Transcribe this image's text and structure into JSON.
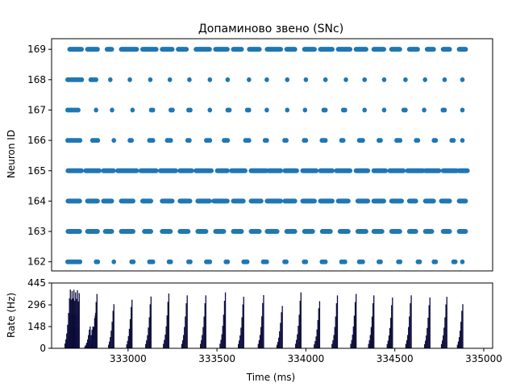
{
  "chart_data": [
    {
      "type": "scatter",
      "title": "Допаминово звено (SNc)",
      "xlabel": "",
      "ylabel": "Neuron ID",
      "xlim": [
        332570,
        335050
      ],
      "ylim": [
        161.7,
        169.35
      ],
      "yticks": [
        162,
        163,
        164,
        165,
        166,
        167,
        168,
        169
      ],
      "grid": false,
      "marker_color": "#1f77b4",
      "neurons": [
        {
          "id": 169,
          "bursts": [
            [
              332670,
              332740
            ],
            [
              332770,
              332830
            ],
            [
              332880,
              332910
            ],
            [
              332960,
              333050
            ],
            [
              333080,
              333160
            ],
            [
              333190,
              333250
            ],
            [
              333280,
              333330
            ],
            [
              333380,
              333460
            ],
            [
              333490,
              333560
            ],
            [
              333590,
              333640
            ],
            [
              333680,
              333740
            ],
            [
              333780,
              333860
            ],
            [
              333890,
              333940
            ],
            [
              333990,
              334050
            ],
            [
              334080,
              334150
            ],
            [
              334180,
              334250
            ],
            [
              334280,
              334340
            ],
            [
              334380,
              334440
            ],
            [
              334480,
              334530
            ],
            [
              334580,
              334630
            ],
            [
              334680,
              334720
            ],
            [
              334770,
              334810
            ],
            [
              334860,
              334900
            ]
          ]
        },
        {
          "id": 168,
          "spikes": [
            332660,
            332670,
            332680,
            332690,
            332700,
            332710,
            332720,
            332730,
            332740,
            332790,
            332800,
            332810,
            332820,
            332900,
            333010,
            333125,
            333235,
            333345,
            333460,
            333560,
            333680,
            333780,
            333895,
            334000,
            334110,
            334225,
            334330,
            334440,
            334560,
            334670,
            334780,
            334880
          ]
        },
        {
          "id": 167,
          "spikes": [
            332660,
            332670,
            332680,
            332690,
            332700,
            332710,
            332720,
            332820,
            332910,
            333025,
            333130,
            333140,
            333240,
            333250,
            333340,
            333350,
            333460,
            333560,
            333570,
            333670,
            333680,
            333780,
            333895,
            333995,
            334100,
            334110,
            334210,
            334220,
            334330,
            334440,
            334550,
            334560,
            334665,
            334770,
            334780,
            334880
          ]
        },
        {
          "id": 166,
          "spikes": [
            332660,
            332670,
            332680,
            332690,
            332700,
            332710,
            332720,
            332730,
            332800,
            332810,
            332820,
            332830,
            332920,
            333010,
            333020,
            333120,
            333130,
            333140,
            333220,
            333230,
            333240,
            333335,
            333345,
            333440,
            333450,
            333460,
            333540,
            333550,
            333560,
            333660,
            333670,
            333680,
            333770,
            333780,
            333880,
            333890,
            333990,
            334000,
            334090,
            334100,
            334110,
            334200,
            334210,
            334300,
            334310,
            334320,
            334410,
            334420,
            334510,
            334520,
            334530,
            334620,
            334630,
            334720,
            334730,
            334820,
            334830,
            334880
          ]
        },
        {
          "id": 165,
          "bursts": [
            [
              332660,
              332740
            ],
            [
              332760,
              332840
            ],
            [
              332860,
              332920
            ],
            [
              332940,
              333050
            ],
            [
              333070,
              333160
            ],
            [
              333180,
              333270
            ],
            [
              333290,
              333360
            ],
            [
              333380,
              333470
            ],
            [
              333500,
              333560
            ],
            [
              333580,
              333660
            ],
            [
              333690,
              333780
            ],
            [
              333790,
              333860
            ],
            [
              333880,
              333950
            ],
            [
              333980,
              334060
            ],
            [
              334080,
              334150
            ],
            [
              334170,
              334250
            ],
            [
              334280,
              334350
            ],
            [
              334380,
              334450
            ],
            [
              334470,
              334550
            ],
            [
              334570,
              334660
            ],
            [
              334670,
              334750
            ],
            [
              334770,
              334850
            ],
            [
              334860,
              334910
            ]
          ]
        },
        {
          "id": 164,
          "bursts": [
            [
              332660,
              332730
            ],
            [
              332770,
              332830
            ],
            [
              332860,
              332910
            ],
            [
              332960,
              333030
            ],
            [
              333080,
              333130
            ],
            [
              333190,
              333250
            ],
            [
              333290,
              333350
            ],
            [
              333390,
              333460
            ],
            [
              333480,
              333560
            ],
            [
              333590,
              333650
            ],
            [
              333690,
              333750
            ],
            [
              333780,
              333860
            ],
            [
              333880,
              333940
            ],
            [
              333980,
              334050
            ],
            [
              334080,
              334150
            ],
            [
              334180,
              334240
            ],
            [
              334290,
              334350
            ],
            [
              334380,
              334440
            ],
            [
              334480,
              334540
            ],
            [
              334580,
              334620
            ],
            [
              334670,
              334720
            ],
            [
              334760,
              334810
            ],
            [
              334860,
              334900
            ]
          ]
        },
        {
          "id": 163,
          "bursts": [
            [
              332660,
              332730
            ],
            [
              332770,
              332830
            ],
            [
              332870,
              332910
            ],
            [
              332960,
              333030
            ],
            [
              333090,
              333130
            ],
            [
              333190,
              333240
            ],
            [
              333290,
              333340
            ],
            [
              333390,
              333440
            ],
            [
              333490,
              333540
            ],
            [
              333590,
              333640
            ],
            [
              333690,
              333740
            ],
            [
              333780,
              333840
            ],
            [
              333890,
              333940
            ],
            [
              333990,
              334040
            ],
            [
              334090,
              334140
            ],
            [
              334190,
              334240
            ],
            [
              334290,
              334340
            ],
            [
              334380,
              334430
            ],
            [
              334480,
              334530
            ],
            [
              334580,
              334620
            ],
            [
              334670,
              334710
            ],
            [
              334770,
              334810
            ],
            [
              334860,
              334900
            ]
          ]
        },
        {
          "id": 162,
          "spikes": [
            332660,
            332670,
            332680,
            332690,
            332700,
            332710,
            332720,
            332730,
            332820,
            332830,
            332920,
            333020,
            333030,
            333120,
            333130,
            333140,
            333230,
            333240,
            333340,
            333350,
            333440,
            333450,
            333460,
            333550,
            333560,
            333650,
            333660,
            333670,
            333760,
            333770,
            333780,
            333880,
            333890,
            333990,
            334000,
            334090,
            334100,
            334110,
            334200,
            334210,
            334220,
            334300,
            334310,
            334320,
            334410,
            334420,
            334520,
            334530,
            334630,
            334640,
            334720,
            334730,
            334830,
            334840,
            334880
          ]
        }
      ]
    },
    {
      "type": "bar",
      "title": "",
      "xlabel": "Time (ms)",
      "ylabel": "Rate (Hz)",
      "xlim": [
        332570,
        335050
      ],
      "ylim": [
        0,
        445
      ],
      "yticks": [
        0,
        148,
        296,
        445
      ],
      "xticks": [
        333000,
        333500,
        334000,
        334500,
        335000
      ],
      "grid": false,
      "bar_color": "#000000",
      "bar_edge_color": "#1f1f8f",
      "bin_ms": 5,
      "peaks": [
        {
          "t": 332673,
          "h": 400
        },
        {
          "t": 332683,
          "h": 390
        },
        {
          "t": 332693,
          "h": 398
        },
        {
          "t": 332703,
          "h": 380
        },
        {
          "t": 332713,
          "h": 395
        },
        {
          "t": 332723,
          "h": 375
        },
        {
          "t": 332785,
          "h": 148
        },
        {
          "t": 332800,
          "h": 148
        },
        {
          "t": 332815,
          "h": 240
        },
        {
          "t": 332823,
          "h": 370
        },
        {
          "t": 332918,
          "h": 300
        },
        {
          "t": 333020,
          "h": 330
        },
        {
          "t": 333127,
          "h": 352
        },
        {
          "t": 333227,
          "h": 372
        },
        {
          "t": 333330,
          "h": 360
        },
        {
          "t": 333435,
          "h": 360
        },
        {
          "t": 333545,
          "h": 380
        },
        {
          "t": 333648,
          "h": 350
        },
        {
          "t": 333760,
          "h": 362
        },
        {
          "t": 333865,
          "h": 288
        },
        {
          "t": 333970,
          "h": 380
        },
        {
          "t": 334075,
          "h": 320
        },
        {
          "t": 334175,
          "h": 360
        },
        {
          "t": 334280,
          "h": 370
        },
        {
          "t": 334380,
          "h": 360
        },
        {
          "t": 334485,
          "h": 345
        },
        {
          "t": 334590,
          "h": 360
        },
        {
          "t": 334695,
          "h": 345
        },
        {
          "t": 334790,
          "h": 350
        },
        {
          "t": 334880,
          "h": 300
        }
      ]
    }
  ]
}
